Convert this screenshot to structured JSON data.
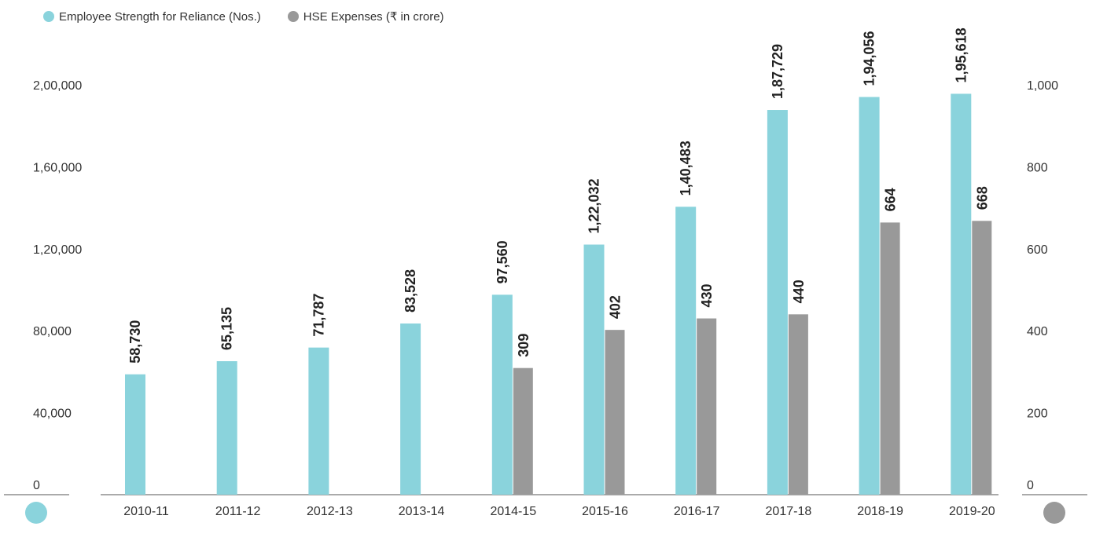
{
  "legend": {
    "employee_label": "Employee Strength for Reliance (Nos.)",
    "hse_label": "HSE Expenses (₹ in crore)"
  },
  "colors": {
    "employee": "#8ad3dc",
    "hse": "#999999",
    "axis": "#555555"
  },
  "chart_data": {
    "type": "bar",
    "categories": [
      "2010-11",
      "2011-12",
      "2012-13",
      "2013-14",
      "2014-15",
      "2015-16",
      "2016-17",
      "2017-18",
      "2018-19",
      "2019-20"
    ],
    "series": [
      {
        "name": "Employee Strength for Reliance (Nos.)",
        "axis": "left",
        "values": [
          58730,
          65135,
          71787,
          83528,
          97560,
          122032,
          140483,
          187729,
          194056,
          195618
        ],
        "labels": [
          "58,730",
          "65,135",
          "71,787",
          "83,528",
          "97,560",
          "1,22,032",
          "1,40,483",
          "1,87,729",
          "1,94,056",
          "1,95,618"
        ]
      },
      {
        "name": "HSE Expenses (₹ in crore)",
        "axis": "right",
        "values": [
          null,
          null,
          null,
          null,
          309,
          402,
          430,
          440,
          664,
          668
        ],
        "labels": [
          "",
          "",
          "",
          "",
          "309",
          "402",
          "430",
          "440",
          "664",
          "668"
        ]
      }
    ],
    "left_axis": {
      "ylim": [
        0,
        200000
      ],
      "ticks": [
        0,
        40000,
        80000,
        120000,
        160000,
        200000
      ],
      "tick_labels": [
        "0",
        "40,000",
        "80,000",
        "1,20,000",
        "1,60,000",
        "2,00,000"
      ]
    },
    "right_axis": {
      "ylim": [
        0,
        1000
      ],
      "ticks": [
        0,
        200,
        400,
        600,
        800,
        1000
      ],
      "tick_labels": [
        "0",
        "200",
        "400",
        "600",
        "800",
        "1,000"
      ]
    },
    "legend_position": "top-left",
    "grid": false
  }
}
